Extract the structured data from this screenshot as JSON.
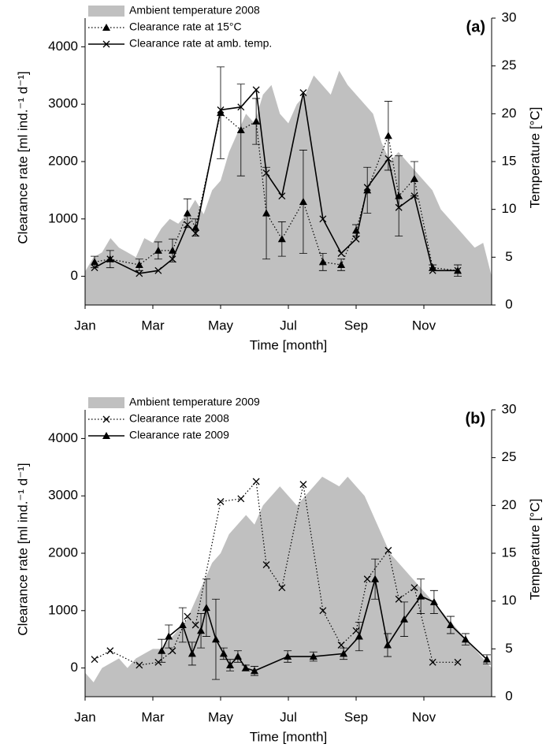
{
  "chart_data": [
    {
      "type": "line",
      "label": "(a)",
      "xlabel": "Time [month]",
      "ylabel": "Clearance rate [ml ind.⁻¹ d⁻¹]",
      "y2label": "Temperature [°C]",
      "xlim": [
        0,
        12
      ],
      "xticks": [
        {
          "value": 0,
          "label": "Jan"
        },
        {
          "value": 2,
          "label": "Mar"
        },
        {
          "value": 4,
          "label": "May"
        },
        {
          "value": 6,
          "label": "Jul"
        },
        {
          "value": 8,
          "label": "Sep"
        },
        {
          "value": 10,
          "label": "Nov"
        }
      ],
      "ylim": [
        -500,
        4500
      ],
      "yticks": [
        0,
        1000,
        2000,
        3000,
        4000
      ],
      "y2lim": [
        0,
        30
      ],
      "y2ticks": [
        0,
        5,
        10,
        15,
        20,
        25,
        30
      ],
      "series": [
        {
          "name": "Ambient temperature 2008",
          "style": "area",
          "axis": "y2",
          "color": "#c0c0c0",
          "x": [
            0,
            0.25,
            0.5,
            0.75,
            1,
            1.25,
            1.5,
            1.75,
            2,
            2.25,
            2.5,
            2.75,
            3,
            3.25,
            3.5,
            3.75,
            4,
            4.25,
            4.5,
            4.75,
            5,
            5.25,
            5.5,
            5.75,
            6,
            6.25,
            6.5,
            6.75,
            7,
            7.25,
            7.5,
            7.75,
            8,
            8.25,
            8.5,
            8.75,
            9,
            9.25,
            9.5,
            9.75,
            10,
            10.25,
            10.5,
            10.75,
            11,
            11.25,
            11.5,
            11.75,
            12
          ],
          "values": [
            3.5,
            5,
            5.5,
            7,
            6,
            5.5,
            5,
            7,
            6.5,
            8,
            9,
            8.5,
            9.5,
            11,
            9.5,
            12,
            13,
            16,
            18,
            20,
            19,
            22,
            23,
            20,
            19,
            21,
            22,
            24,
            23,
            22,
            24.5,
            23,
            22,
            21,
            20,
            17,
            15,
            16,
            15,
            14,
            13,
            12,
            10,
            9,
            8,
            7,
            6,
            6.5,
            3
          ]
        },
        {
          "name": "Clearance rate at 15°C",
          "style": "line",
          "dash": "dotted",
          "marker": "triangle",
          "color": "#000000",
          "x": [
            0.28,
            0.74,
            1.6,
            2.16,
            2.58,
            3.02,
            3.26,
            4.0,
            4.6,
            5.05,
            5.35,
            5.81,
            6.44,
            7.02,
            7.56,
            8.0,
            8.33,
            8.95,
            9.26,
            9.72,
            10.26,
            11.0
          ],
          "values": [
            250,
            300,
            200,
            450,
            450,
            1100,
            850,
            2850,
            2550,
            2700,
            1100,
            650,
            1300,
            250,
            200,
            800,
            1500,
            2450,
            1400,
            1700,
            150,
            100
          ],
          "errors": [
            100,
            150,
            100,
            150,
            200,
            250,
            150,
            800,
            800,
            400,
            800,
            300,
            900,
            150,
            100,
            100,
            400,
            600,
            700,
            300,
            50,
            100
          ]
        },
        {
          "name": "Clearance rate at amb. temp.",
          "style": "line",
          "dash": "solid",
          "marker": "x",
          "color": "#000000",
          "x": [
            0.28,
            0.74,
            1.6,
            2.16,
            2.58,
            3.02,
            3.26,
            4.0,
            4.6,
            5.05,
            5.35,
            5.81,
            6.44,
            7.02,
            7.56,
            8.0,
            8.33,
            8.95,
            9.26,
            9.72,
            10.26,
            11.0
          ],
          "values": [
            150,
            300,
            50,
            100,
            300,
            900,
            750,
            2900,
            2950,
            3250,
            1800,
            1400,
            3200,
            1000,
            400,
            650,
            1550,
            2050,
            1200,
            1400,
            100,
            100
          ]
        }
      ]
    },
    {
      "type": "line",
      "label": "(b)",
      "xlabel": "Time [month]",
      "ylabel": "Clearance rate [ml ind.⁻¹ d⁻¹]",
      "y2label": "Temperature [°C]",
      "xlim": [
        0,
        12
      ],
      "xticks": [
        {
          "value": 0,
          "label": "Jan"
        },
        {
          "value": 2,
          "label": "Mar"
        },
        {
          "value": 4,
          "label": "May"
        },
        {
          "value": 6,
          "label": "Jul"
        },
        {
          "value": 8,
          "label": "Sep"
        },
        {
          "value": 10,
          "label": "Nov"
        }
      ],
      "ylim": [
        -500,
        4500
      ],
      "yticks": [
        0,
        1000,
        2000,
        3000,
        4000
      ],
      "y2lim": [
        0,
        30
      ],
      "y2ticks": [
        0,
        5,
        10,
        15,
        20,
        25,
        30
      ],
      "series": [
        {
          "name": "Ambient temperature 2009",
          "style": "area",
          "axis": "y2",
          "color": "#c0c0c0",
          "x": [
            0,
            0.25,
            0.5,
            0.75,
            1,
            1.25,
            1.5,
            1.75,
            2,
            2.25,
            2.5,
            2.75,
            3,
            3.25,
            3.5,
            3.75,
            4,
            4.25,
            4.5,
            4.75,
            5,
            5.25,
            5.5,
            5.75,
            6,
            6.25,
            6.5,
            6.75,
            7,
            7.25,
            7.5,
            7.75,
            8,
            8.25,
            8.5,
            8.75,
            9,
            9.25,
            9.5,
            9.75,
            10,
            10.25,
            10.5,
            10.75,
            11,
            11.25,
            11.5,
            11.75,
            12
          ],
          "values": [
            2.5,
            1.5,
            3,
            3.5,
            4,
            3,
            4,
            4.5,
            5,
            5,
            6,
            7,
            8,
            10,
            12,
            14,
            15,
            17,
            18,
            19,
            18,
            20,
            21,
            22,
            21,
            20,
            21,
            22,
            23,
            22.5,
            22,
            23,
            22,
            21,
            19,
            17,
            15,
            14,
            13,
            12,
            11,
            10,
            9,
            8,
            7,
            6,
            5,
            4,
            3
          ]
        },
        {
          "name": "Clearance rate 2008",
          "style": "line",
          "dash": "dotted",
          "marker": "x",
          "color": "#000000",
          "x": [
            0.28,
            0.74,
            1.6,
            2.16,
            2.58,
            3.02,
            3.26,
            4.0,
            4.6,
            5.05,
            5.35,
            5.81,
            6.44,
            7.02,
            7.56,
            8.0,
            8.33,
            8.95,
            9.26,
            9.72,
            10.26,
            11.0
          ],
          "values": [
            150,
            300,
            50,
            100,
            300,
            900,
            750,
            2900,
            2950,
            3250,
            1800,
            1400,
            3200,
            1000,
            400,
            650,
            1550,
            2050,
            1200,
            1400,
            100,
            100
          ]
        },
        {
          "name": "Clearance rate 2009",
          "style": "line",
          "dash": "solid",
          "marker": "triangle",
          "color": "#000000",
          "x": [
            2.26,
            2.47,
            2.88,
            3.16,
            3.42,
            3.58,
            3.86,
            4.09,
            4.28,
            4.51,
            4.74,
            5.0,
            5.98,
            6.74,
            7.63,
            8.09,
            8.56,
            8.93,
            9.42,
            9.91,
            10.3,
            10.79,
            11.23,
            11.86
          ],
          "values": [
            300,
            550,
            750,
            250,
            650,
            1050,
            500,
            250,
            50,
            200,
            0,
            -50,
            200,
            200,
            250,
            550,
            1550,
            400,
            850,
            1250,
            1150,
            750,
            500,
            150
          ],
          "errors": [
            200,
            200,
            300,
            200,
            300,
            500,
            700,
            100,
            100,
            100,
            50,
            80,
            100,
            80,
            100,
            250,
            350,
            200,
            300,
            300,
            200,
            150,
            100,
            80
          ]
        }
      ]
    }
  ]
}
